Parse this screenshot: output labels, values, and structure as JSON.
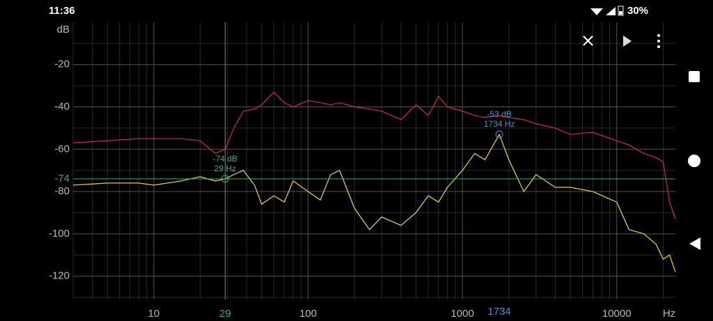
{
  "status_bar": {
    "time": "11:36",
    "battery": "30%"
  },
  "chart_data": {
    "type": "line",
    "x_scale": "log",
    "y_unit": "dB",
    "x_unit": "Hz",
    "xlim": [
      3,
      24000
    ],
    "ylim": [
      -131,
      0
    ],
    "xticks": [
      10,
      100,
      1000,
      10000
    ],
    "xminor": [
      3,
      4,
      5,
      6,
      7,
      8,
      9,
      20,
      30,
      40,
      50,
      60,
      70,
      80,
      90,
      200,
      300,
      400,
      500,
      600,
      700,
      800,
      900,
      2000,
      3000,
      4000,
      5000,
      6000,
      7000,
      8000,
      9000,
      20000
    ],
    "yticks": [
      -20,
      -40,
      -60,
      -80,
      -100,
      -120
    ],
    "yminor": [
      -10,
      -30,
      -50,
      -70,
      -90,
      -110,
      -130
    ],
    "grid": true,
    "x": [
      3,
      5,
      8,
      10,
      15,
      20,
      25,
      29,
      33,
      38,
      45,
      50,
      60,
      70,
      80,
      100,
      120,
      140,
      160,
      200,
      250,
      300,
      400,
      500,
      600,
      700,
      800,
      1000,
      1200,
      1400,
      1734,
      2000,
      2500,
      3000,
      4000,
      5000,
      7000,
      10000,
      12000,
      15000,
      18000,
      20000,
      22000,
      24000
    ],
    "series": [
      {
        "color": "#c0303c",
        "values": [
          -57,
          -56,
          -55,
          -55,
          -55,
          -56,
          -62,
          -60,
          -50,
          -42,
          -41,
          -39,
          -33,
          -38,
          -40,
          -37,
          -38,
          -39,
          -38,
          -40,
          -41,
          -42,
          -46,
          -39,
          -44,
          -35,
          -40,
          -42,
          -44,
          -45,
          -44,
          -45,
          -46,
          -48,
          -50,
          -53,
          -52,
          -56,
          -58,
          -62,
          -64,
          -66,
          -85,
          -93
        ]
      },
      {
        "color": "#e8c94a",
        "values": [
          -77,
          -76,
          -76,
          -77,
          -75,
          -73,
          -75,
          -74,
          -72,
          -70,
          -77,
          -86,
          -82,
          -85,
          -75,
          -80,
          -84,
          -72,
          -70,
          -88,
          -98,
          -92,
          -96,
          -90,
          -82,
          -85,
          -78,
          -70,
          -62,
          -65,
          -53,
          -65,
          -80,
          -72,
          -78,
          -78,
          -80,
          -85,
          -98,
          -100,
          -105,
          -112,
          -110,
          -118
        ]
      }
    ],
    "cursors": [
      {
        "x": 29,
        "y": -74,
        "label": [
          "-74 dB",
          "29 Hz"
        ],
        "color": "#3fae78",
        "crosshair": true,
        "axis_labels": [
          "x",
          "y"
        ]
      },
      {
        "x": 1734,
        "y": -53,
        "label": [
          "-53 dB",
          "1734 Hz"
        ],
        "color": "#4a90d9",
        "crosshair": false,
        "axis_labels": [
          "x"
        ]
      }
    ]
  }
}
